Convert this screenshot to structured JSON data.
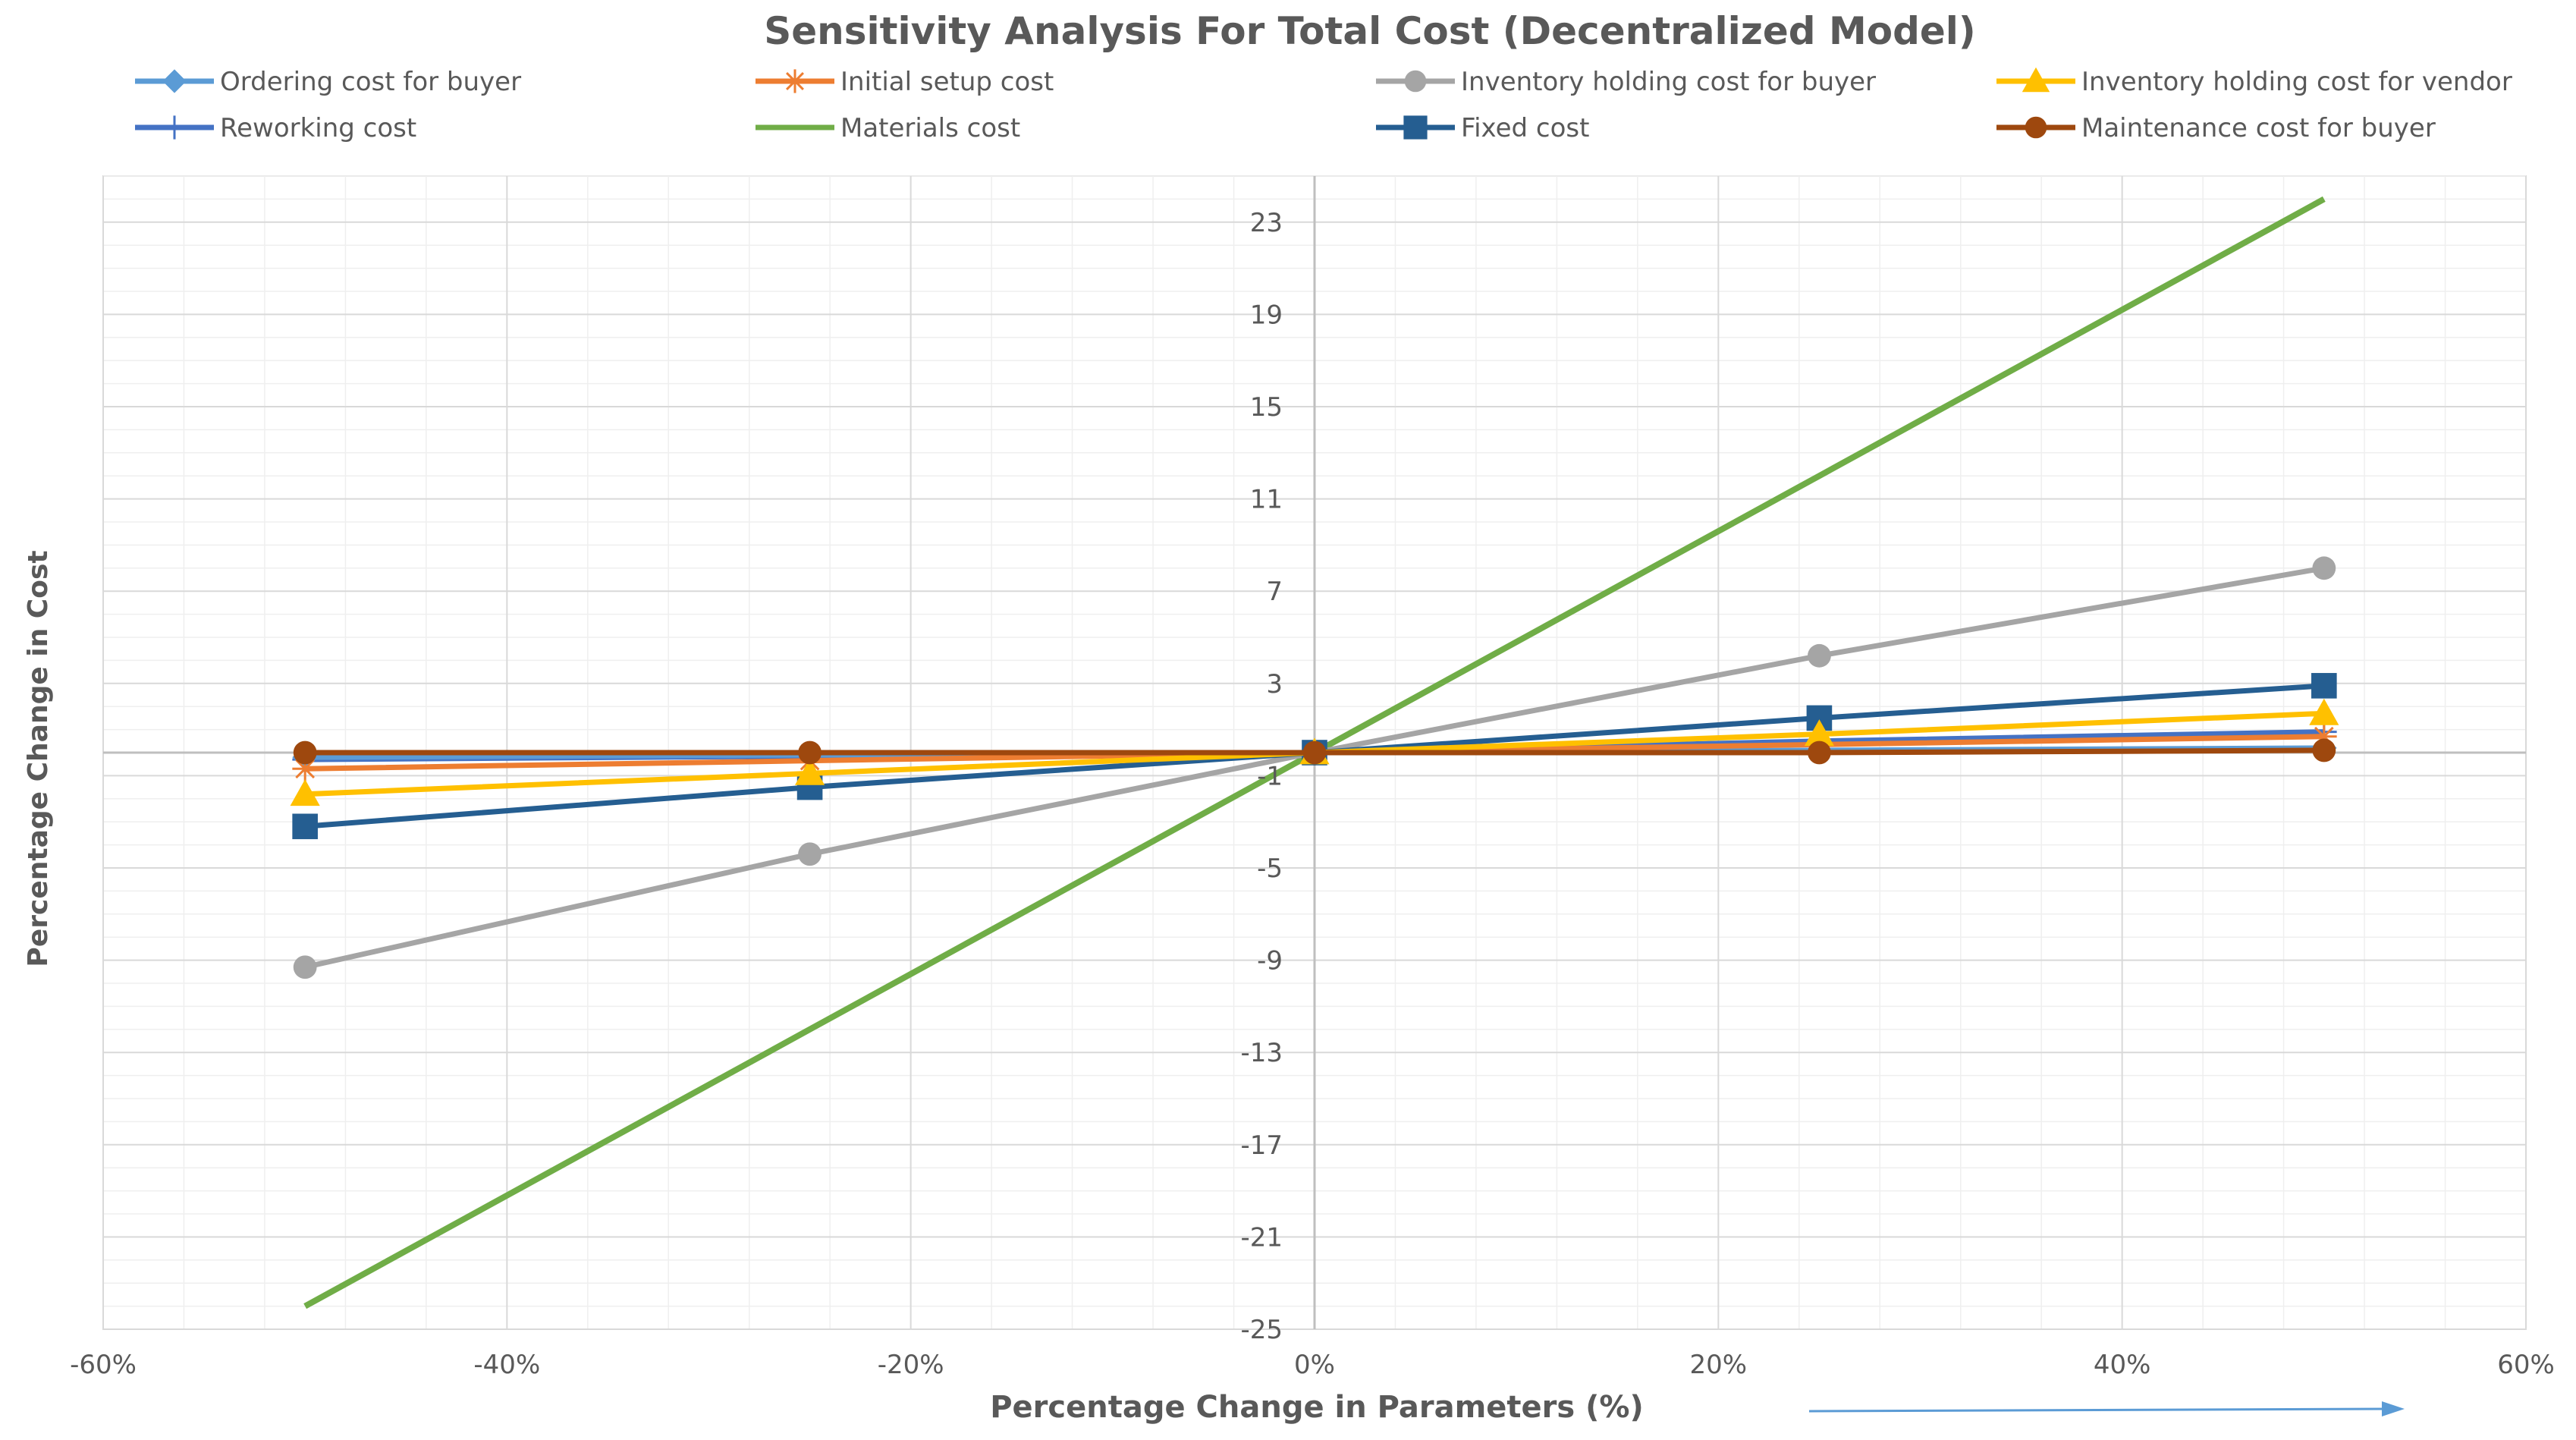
{
  "chart_data": {
    "type": "line",
    "title": "Sensitivity Analysis For Total Cost (Decentralized Model)",
    "xlabel": "Percentage Change in Parameters (%)",
    "ylabel": "Percentage Change in Cost",
    "xlim": [
      -60,
      60
    ],
    "ylim": [
      -25,
      25
    ],
    "x_ticks": [
      -60,
      -40,
      -20,
      0,
      20,
      40,
      60
    ],
    "x_tick_labels": [
      "-60%",
      "-40%",
      "-20%",
      "0%",
      "20%",
      "40%",
      "60%"
    ],
    "y_ticks": [
      23,
      19,
      15,
      11,
      7,
      3,
      -1,
      -5,
      -9,
      -13,
      -17,
      -21,
      -25
    ],
    "y_tick_labels": [
      "23",
      "19",
      "15",
      "11",
      "7",
      "3",
      "-1",
      "-5",
      "-9",
      "-13",
      "-17",
      "-21",
      "-25"
    ],
    "grid": true,
    "legend_position": "top",
    "x": [
      -50,
      -25,
      0,
      25,
      50
    ],
    "series": [
      {
        "name": "Ordering cost for buyer",
        "values": [
          -0.2,
          -0.1,
          0,
          0.1,
          0.2
        ],
        "color": "#5B9BD5",
        "marker": "diamond"
      },
      {
        "name": "Initial setup cost",
        "values": [
          -0.7,
          -0.35,
          0,
          0.35,
          0.7
        ],
        "color": "#ED7D31",
        "marker": "star"
      },
      {
        "name": "Inventory holding cost for buyer",
        "values": [
          -9.3,
          -4.4,
          0,
          4.2,
          8.0
        ],
        "color": "#A5A5A5",
        "marker": "circle"
      },
      {
        "name": "Inventory holding cost for vendor",
        "values": [
          -1.8,
          -0.9,
          0,
          0.8,
          1.7
        ],
        "color": "#FFC000",
        "marker": "triangle"
      },
      {
        "name": "Reworking cost",
        "values": [
          -0.3,
          -0.15,
          0,
          0.5,
          0.9
        ],
        "color": "#4472C4",
        "marker": "plus"
      },
      {
        "name": "Materials cost",
        "values": [
          -24,
          -12,
          0,
          12,
          24
        ],
        "color": "#70AD47",
        "marker": "none"
      },
      {
        "name": "Fixed cost",
        "values": [
          -3.2,
          -1.5,
          0,
          1.5,
          2.9
        ],
        "color": "#255E91",
        "marker": "square"
      },
      {
        "name": "Maintenance cost for buyer",
        "values": [
          0,
          0,
          0,
          0,
          0.1
        ],
        "color": "#9E480E",
        "marker": "circle"
      }
    ]
  }
}
